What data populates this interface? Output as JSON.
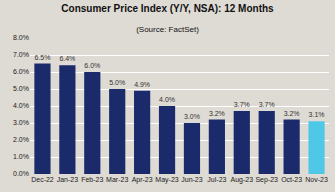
{
  "chart_data": {
    "type": "bar",
    "title": "Consumer Price Index (Y/Y, NSA): 12 Months",
    "subtitle": "(Source: FactSet)",
    "categories": [
      "Dec-22",
      "Jan-23",
      "Feb-23",
      "Mar-23",
      "Apr-23",
      "May-23",
      "Jun-23",
      "Jul-23",
      "Aug-23",
      "Sep-23",
      "Oct-23",
      "Nov-23"
    ],
    "values": [
      6.5,
      6.4,
      6.0,
      5.0,
      4.9,
      4.0,
      3.0,
      3.2,
      3.7,
      3.7,
      3.2,
      3.1
    ],
    "value_labels": [
      "6.5%",
      "6.4%",
      "6.0%",
      "5.0%",
      "4.9%",
      "4.0%",
      "3.0%",
      "3.2%",
      "3.7%",
      "3.7%",
      "3.2%",
      "3.1%"
    ],
    "data_labels": true,
    "colors": [
      "#1b2a6b",
      "#1b2a6b",
      "#1b2a6b",
      "#1b2a6b",
      "#1b2a6b",
      "#1b2a6b",
      "#1b2a6b",
      "#1b2a6b",
      "#1b2a6b",
      "#1b2a6b",
      "#1b2a6b",
      "#4fc8e8"
    ],
    "ylim": [
      0.0,
      8.0
    ],
    "yticks": [
      {
        "value": 0,
        "label": "0.0%"
      },
      {
        "value": 1,
        "label": "1.0%"
      },
      {
        "value": 2,
        "label": "2.0%"
      },
      {
        "value": 3,
        "label": "3.0%"
      },
      {
        "value": 4,
        "label": "4.0%"
      },
      {
        "value": 5,
        "label": "5.0%"
      },
      {
        "value": 6,
        "label": "6.0%"
      },
      {
        "value": 7,
        "label": "7.0%"
      },
      {
        "value": 8,
        "label": "8.0%"
      }
    ],
    "grid": true
  }
}
